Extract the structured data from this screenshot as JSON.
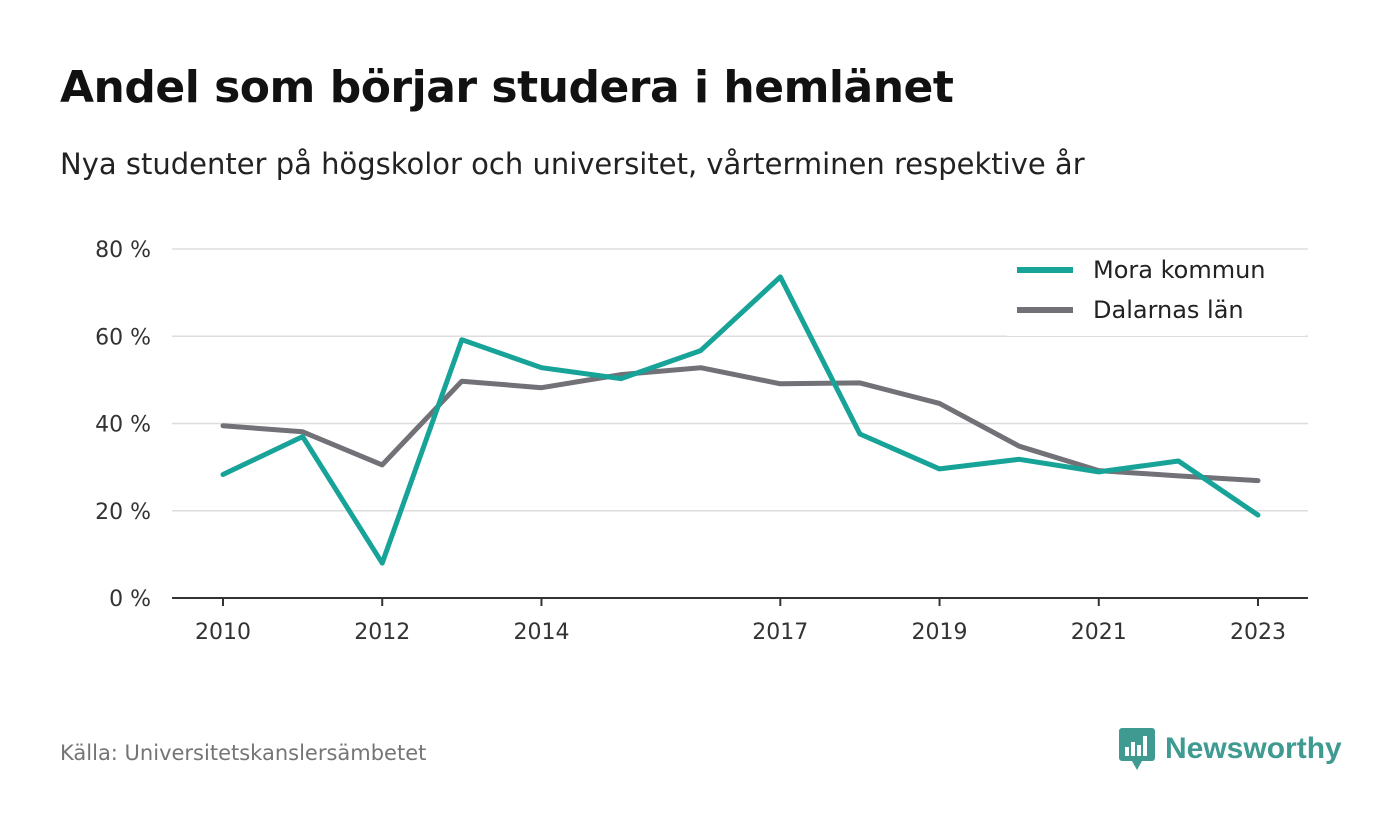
{
  "chart_data": {
    "type": "line",
    "title": "Andel som börjar studera i hemlänet",
    "subtitle": "Nya studenter på högskolor och universitet, vårterminen respektive år",
    "x": [
      2010,
      2011,
      2012,
      2013,
      2014,
      2015,
      2016,
      2017,
      2018,
      2019,
      2020,
      2021,
      2022,
      2023
    ],
    "x_tick_labels": [
      "2010",
      "2012",
      "2014",
      "2017",
      "2019",
      "2021",
      "2023"
    ],
    "x_tick_values": [
      2010,
      2012,
      2014,
      2017,
      2019,
      2021,
      2023
    ],
    "ylim": [
      0,
      80
    ],
    "y_ticks": [
      0,
      20,
      40,
      60,
      80
    ],
    "y_tick_labels": [
      "0 %",
      "20 %",
      "40 %",
      "60 %",
      "80 %"
    ],
    "grid": true,
    "legend_position": "top-right",
    "series": [
      {
        "name": "Mora kommun",
        "color": "#17a398",
        "values": [
          28.3,
          37.0,
          8.0,
          59.2,
          52.8,
          50.3,
          56.7,
          73.6,
          37.6,
          29.6,
          31.8,
          28.9,
          31.4,
          19.0
        ]
      },
      {
        "name": "Dalarnas län",
        "color": "#737178",
        "values": [
          39.5,
          38.1,
          30.5,
          49.7,
          48.2,
          51.2,
          52.8,
          49.1,
          49.3,
          44.6,
          34.8,
          29.2,
          28.0,
          26.9
        ]
      }
    ]
  },
  "source": "Källa: Universitetskanslersämbetet",
  "brand": {
    "name": "Newsworthy",
    "color": "#3f9a91",
    "icon": "newsworthy-logo-icon"
  }
}
